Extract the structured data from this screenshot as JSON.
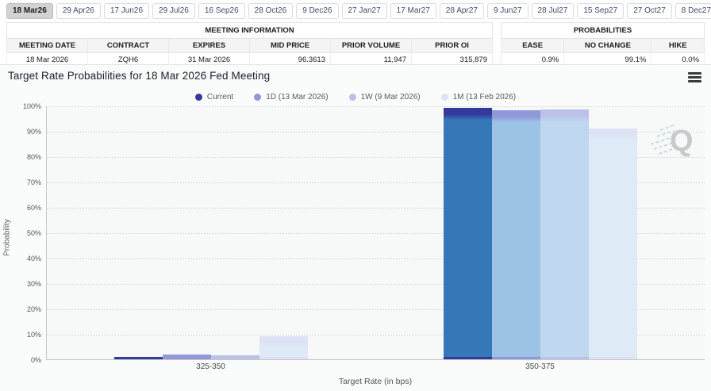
{
  "tabs": [
    {
      "label": "18 Mar26",
      "selected": true
    },
    {
      "label": "29 Apr26",
      "selected": false
    },
    {
      "label": "17 Jun26",
      "selected": false
    },
    {
      "label": "29 Jul26",
      "selected": false
    },
    {
      "label": "16 Sep26",
      "selected": false
    },
    {
      "label": "28 Oct26",
      "selected": false
    },
    {
      "label": "9 Dec26",
      "selected": false
    },
    {
      "label": "27 Jan27",
      "selected": false
    },
    {
      "label": "17 Mar27",
      "selected": false
    },
    {
      "label": "28 Apr27",
      "selected": false
    },
    {
      "label": "9 Jun27",
      "selected": false
    },
    {
      "label": "28 Jul27",
      "selected": false
    },
    {
      "label": "15 Sep27",
      "selected": false
    },
    {
      "label": "27 Oct27",
      "selected": false
    },
    {
      "label": "8 Dec27",
      "selected": false
    }
  ],
  "meeting_info": {
    "title": "MEETING INFORMATION",
    "columns": [
      "MEETING DATE",
      "CONTRACT",
      "EXPIRES",
      "MID PRICE",
      "PRIOR VOLUME",
      "PRIOR OI"
    ],
    "values": [
      "18 Mar 2026",
      "ZQH6",
      "31 Mar 2026",
      "96.3613",
      "11,947",
      "315,879"
    ],
    "align": [
      "center",
      "center",
      "center",
      "right",
      "right",
      "right"
    ]
  },
  "probabilities": {
    "title": "PROBABILITIES",
    "columns": [
      "EASE",
      "NO CHANGE",
      "HIKE"
    ],
    "values": [
      "0.9%",
      "99.1%",
      "0.0%"
    ],
    "align": [
      "right",
      "right",
      "right"
    ]
  },
  "chart": {
    "title": "Target Rate Probabilities for 18 Mar 2026 Fed Meeting",
    "watermark_letter": "Q"
  },
  "chart_data": {
    "type": "bar",
    "title": "Target Rate Probabilities for 18 Mar 2026 Fed Meeting",
    "categories": [
      "325-350",
      "350-375"
    ],
    "series": [
      {
        "name": "Current",
        "values": [
          0.9,
          99.1
        ],
        "color": "#343a9b",
        "fill": "#3577b7"
      },
      {
        "name": "1D (13 Mar 2026)",
        "values": [
          1.9,
          98.1
        ],
        "color": "#9098d8",
        "fill": "#9cc2e5"
      },
      {
        "name": "1W (9 Mar 2026)",
        "values": [
          1.7,
          98.3
        ],
        "color": "#bcc1ea",
        "fill": "#bed7ee"
      },
      {
        "name": "1M (13 Feb 2026)",
        "values": [
          9.2,
          90.8
        ],
        "color": "#dde3f5",
        "fill": "#dfeaf7"
      }
    ],
    "xlabel": "Target Rate (in bps)",
    "ylabel": "Probability",
    "ylim": [
      0,
      100
    ],
    "ytick_step": 10,
    "ytick_labels": [
      "0%",
      "10%",
      "20%",
      "30%",
      "40%",
      "50%",
      "60%",
      "70%",
      "80%",
      "90%",
      "100%"
    ],
    "legend_position": "top",
    "grid": "dotted-horizontal"
  }
}
